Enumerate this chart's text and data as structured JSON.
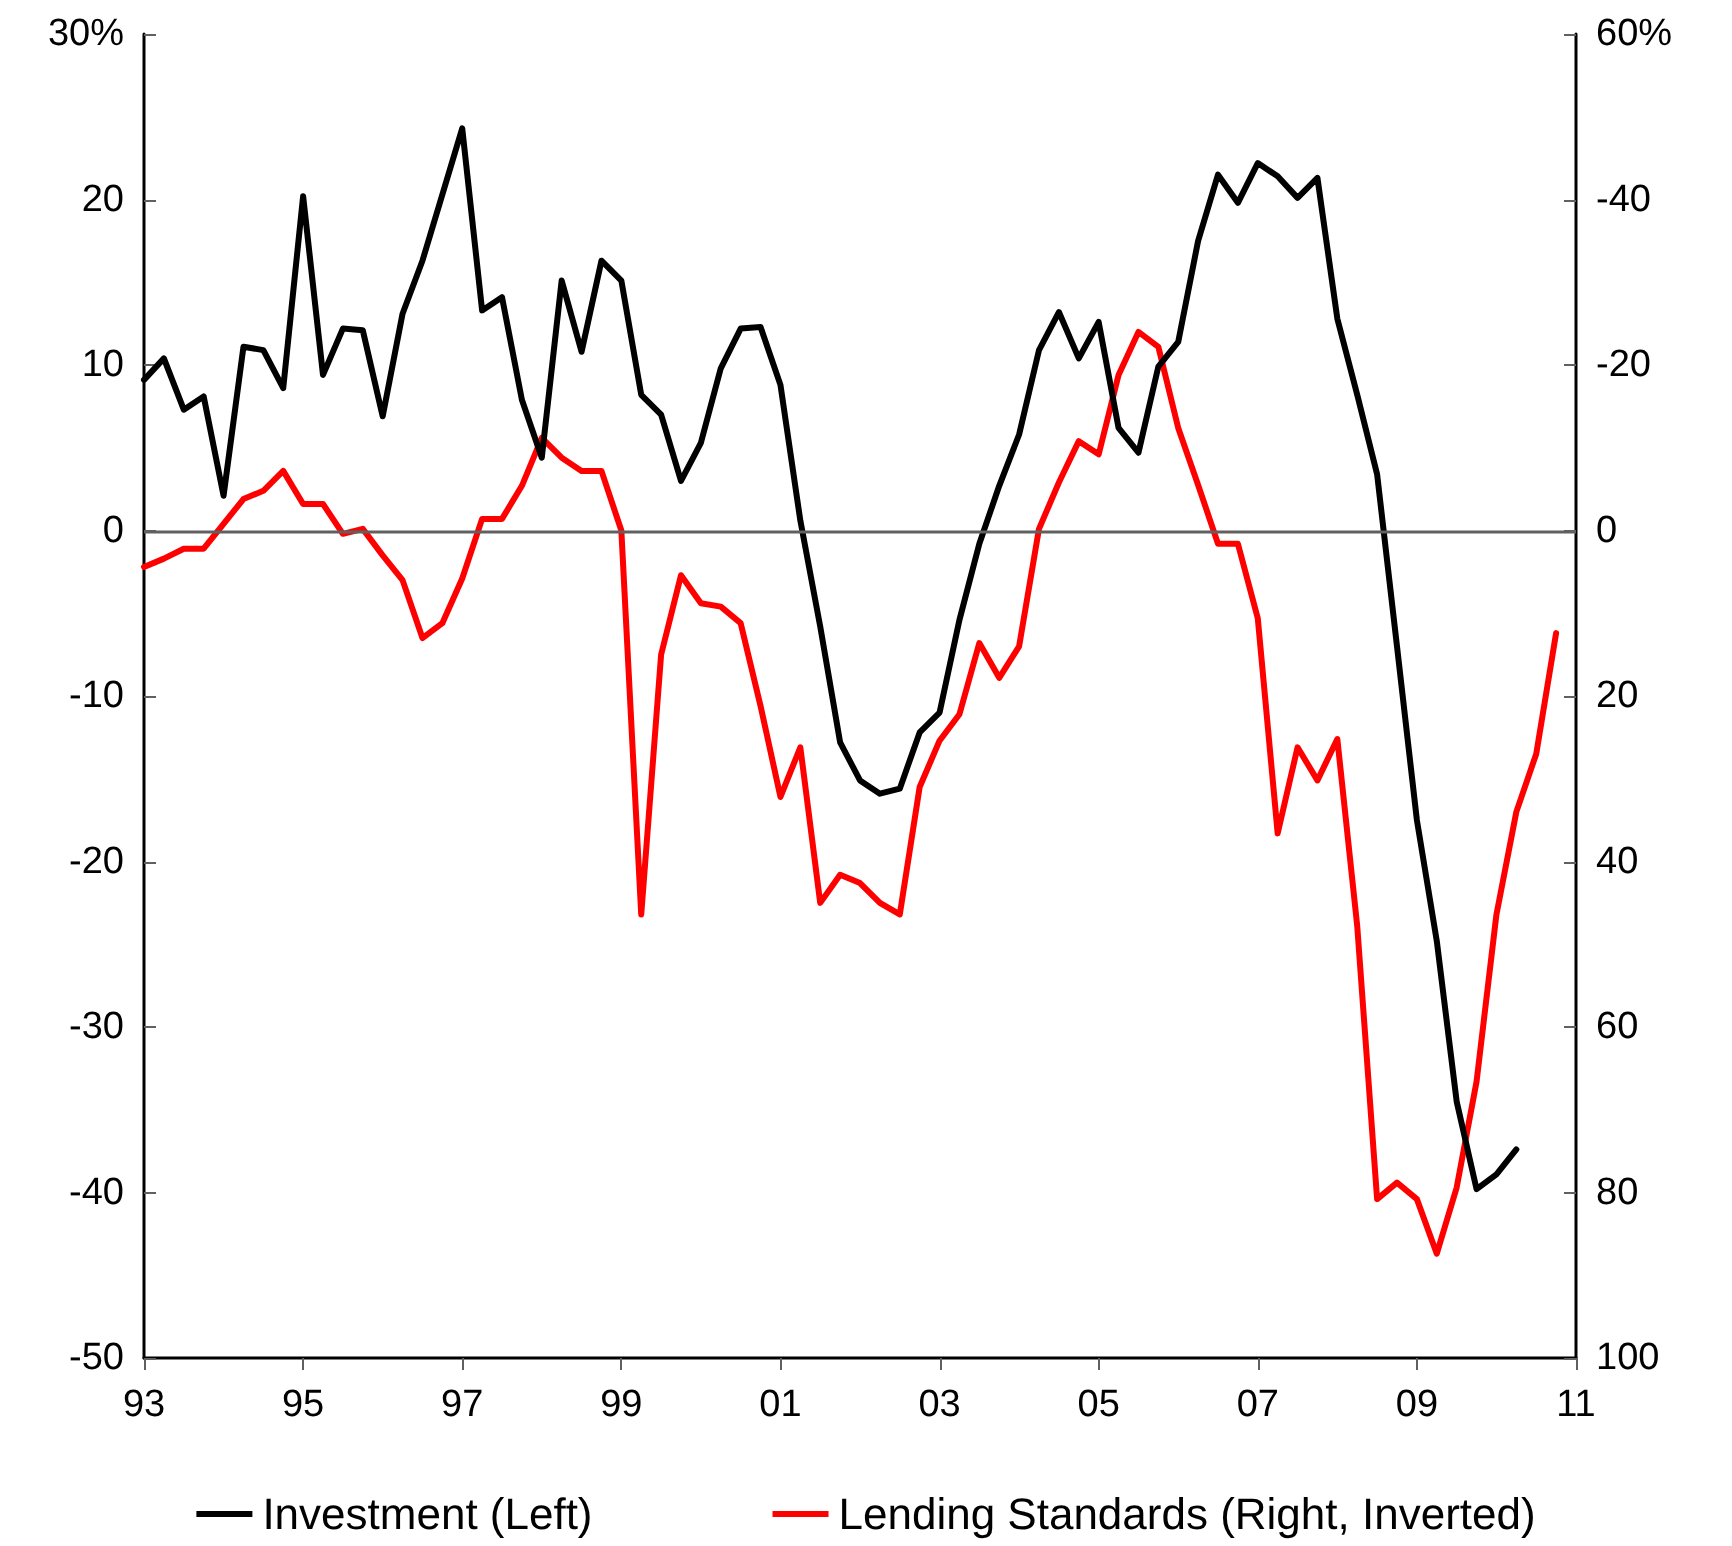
{
  "chart_data": {
    "type": "line",
    "xlim": [
      1993,
      2011
    ],
    "xticks": [
      {
        "value": 1993,
        "label": "93"
      },
      {
        "value": 1995,
        "label": "95"
      },
      {
        "value": 1997,
        "label": "97"
      },
      {
        "value": 1999,
        "label": "99"
      },
      {
        "value": 2001,
        "label": "01"
      },
      {
        "value": 2003,
        "label": "03"
      },
      {
        "value": 2005,
        "label": "05"
      },
      {
        "value": 2007,
        "label": "07"
      },
      {
        "value": 2009,
        "label": "09"
      },
      {
        "value": 2011,
        "label": "11"
      }
    ],
    "ylim": [
      -50,
      30
    ],
    "yticks": [
      -50,
      -40,
      -30,
      -20,
      -10,
      0,
      10,
      20,
      {
        "value": 30,
        "label": "30%"
      }
    ],
    "y2lim": [
      100,
      -60
    ],
    "y2ticks": [
      100,
      80,
      60,
      40,
      20,
      0,
      -20,
      -40,
      {
        "value": -60,
        "label": "60%"
      }
    ],
    "series": [
      {
        "name": "Investment (Left)",
        "color": "#000000",
        "x": [
          1993,
          1993.25,
          1993.5,
          1993.75,
          1994,
          1994.25,
          1994.5,
          1994.75,
          1995,
          1995.25,
          1995.5,
          1995.75,
          1996,
          1996.25,
          1996.5,
          1996.75,
          1997,
          1997.25,
          1997.5,
          1997.75,
          1998,
          1998.25,
          1998.5,
          1998.75,
          1999,
          1999.25,
          1999.5,
          1999.75,
          2000,
          2000.25,
          2000.5,
          2000.75,
          2001,
          2001.25,
          2001.5,
          2001.75,
          2002,
          2002.25,
          2002.5,
          2002.75,
          2003,
          2003.25,
          2003.5,
          2003.75,
          2004,
          2004.25,
          2004.5,
          2004.75,
          2005,
          2005.25,
          2005.5,
          2005.75,
          2006,
          2006.25,
          2006.5,
          2006.75,
          2007,
          2007.25,
          2007.5,
          2007.75,
          2008,
          2008.25,
          2008.5,
          2008.75,
          2009,
          2009.25,
          2009.5,
          2009.75,
          2010,
          2010.25
        ],
        "values": [
          9.1,
          10.4,
          7.3,
          8.1,
          2.1,
          11.1,
          10.9,
          8.6,
          20.2,
          9.4,
          12.2,
          12.1,
          6.9,
          13.1,
          16.3,
          20.3,
          24.3,
          13.3,
          14.1,
          7.9,
          4.4,
          15.1,
          10.8,
          16.3,
          15.1,
          8.2,
          7.0,
          3.0,
          5.3,
          9.8,
          12.2,
          12.3,
          8.8,
          0.6,
          -5.8,
          -12.8,
          -15.1,
          -15.9,
          -15.6,
          -12.2,
          -11.0,
          -5.4,
          -0.8,
          2.7,
          5.8,
          10.9,
          13.2,
          10.4,
          12.6,
          6.2,
          4.7,
          9.9,
          11.4,
          17.5,
          21.5,
          19.8,
          22.2,
          21.4,
          20.1,
          21.3,
          12.8,
          8.2,
          3.4,
          -7.0,
          -17.5,
          -24.8,
          -34.5,
          -39.8,
          -38.9,
          -37.4
        ]
      },
      {
        "name": "Lending Standards (Right, Inverted)",
        "color": "#ff0000",
        "axis": "y2",
        "x": [
          1993,
          1993.25,
          1993.5,
          1993.75,
          1994,
          1994.25,
          1994.5,
          1994.75,
          1995,
          1995.25,
          1995.5,
          1995.75,
          1996,
          1996.25,
          1996.5,
          1996.75,
          1997,
          1997.25,
          1997.5,
          1997.75,
          1998,
          1998.25,
          1998.5,
          1998.75,
          1999,
          1999.25,
          1999.5,
          1999.75,
          2000,
          2000.25,
          2000.5,
          2000.75,
          2001,
          2001.25,
          2001.5,
          2001.75,
          2002,
          2002.25,
          2002.5,
          2002.75,
          2003,
          2003.25,
          2003.5,
          2003.75,
          2004,
          2004.25,
          2004.5,
          2004.75,
          2005,
          2005.25,
          2005.5,
          2005.75,
          2006,
          2006.25,
          2006.5,
          2006.75,
          2007,
          2007.25,
          2007.5,
          2007.75,
          2008,
          2008.25,
          2008.5,
          2008.75,
          2009,
          2009.25,
          2009.5,
          2009.75,
          2010,
          2010.25,
          2010.5,
          2010.75
        ],
        "values": [
          4.4,
          3.4,
          2.2,
          2.2,
          -0.8,
          -3.8,
          -4.8,
          -7.2,
          -3.2,
          -3.2,
          0.4,
          -0.2,
          3.0,
          6.0,
          13.0,
          11.2,
          5.8,
          -1.4,
          -1.4,
          -5.4,
          -11.2,
          -8.8,
          -7.2,
          -7.2,
          0,
          46.4,
          15.0,
          5.4,
          8.8,
          9.2,
          11.2,
          21.2,
          32.2,
          26.2,
          45.0,
          41.6,
          42.6,
          45.0,
          46.4,
          31.0,
          25.4,
          22.2,
          13.6,
          17.8,
          14.0,
          -0.2,
          -5.8,
          -10.8,
          -9.2,
          -18.8,
          -24.0,
          -22.2,
          -12.4,
          -5.5,
          1.6,
          1.6,
          10.6,
          36.6,
          26.2,
          30.2,
          25.2,
          47.8,
          80.8,
          78.8,
          80.8,
          87.4,
          79.4,
          66.6,
          46.4,
          34.0,
          27.0,
          12.4
        ]
      }
    ],
    "ref_lines": [
      {
        "axis": "y",
        "value": 0,
        "color": "#606060"
      }
    ],
    "legend": "bottom",
    "grid": false,
    "marker": "none",
    "line_style": "solid"
  }
}
